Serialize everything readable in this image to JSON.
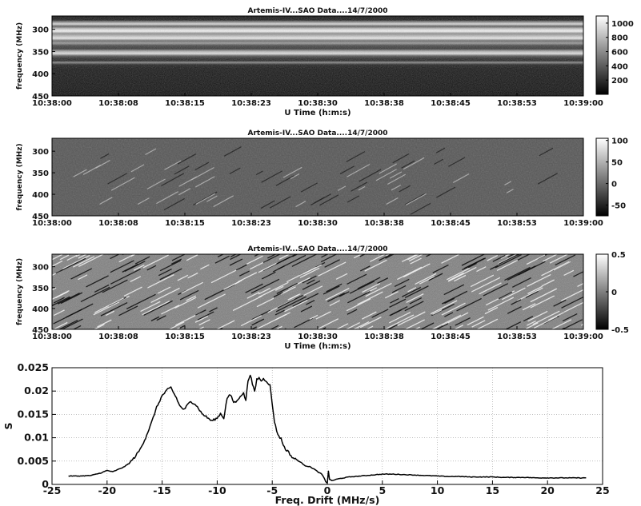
{
  "chart_data": [
    {
      "type": "heatmap",
      "title": "Artemis-IV...SAO   Data....14/7/2000",
      "xlabel": "U Time (h:m:s)",
      "ylabel": "frequency (MHz)",
      "x_ticks": [
        "10:38:00",
        "10:38:08",
        "10:38:15",
        "10:38:23",
        "10:38:30",
        "10:38:38",
        "10:38:45",
        "10:38:53",
        "10:39:00"
      ],
      "y_ticks": [
        300,
        350,
        400,
        450
      ],
      "ylim": [
        270,
        450
      ],
      "y_reversed": true,
      "colorbar_ticks": [
        1000,
        800,
        600,
        400,
        200
      ],
      "colorbar_range": [
        0,
        1100
      ],
      "colormap": "gray"
    },
    {
      "type": "heatmap",
      "title": "Artemis-IV...SAO   Data....14/7/2000",
      "xlabel": "",
      "ylabel": "frequency (MHz)",
      "x_ticks": [
        "10:38:00",
        "10:38:08",
        "10:38:15",
        "10:38:23",
        "10:38:30",
        "10:38:38",
        "10:38:45",
        "10:38:53",
        "10:39:00"
      ],
      "y_ticks": [
        300,
        350,
        400,
        450
      ],
      "ylim": [
        270,
        450
      ],
      "y_reversed": true,
      "colorbar_ticks": [
        100,
        50,
        0,
        -50
      ],
      "colorbar_range": [
        -75,
        105
      ],
      "colormap": "gray"
    },
    {
      "type": "heatmap",
      "title": "Artemis-IV...SAO   Data....14/7/2000",
      "xlabel": "U Time (h:m:s)",
      "ylabel": "frequency (MHz)",
      "x_ticks": [
        "10:38:00",
        "10:38:08",
        "10:38:15",
        "10:38:23",
        "10:38:30",
        "10:38:38",
        "10:38:45",
        "10:38:53",
        "10:39:00"
      ],
      "y_ticks": [
        300,
        350,
        400,
        450
      ],
      "ylim": [
        270,
        450
      ],
      "y_reversed": true,
      "colorbar_ticks": [
        0.5,
        0,
        -0.5
      ],
      "colorbar_range": [
        -0.5,
        0.5
      ],
      "colormap": "gray"
    },
    {
      "type": "line",
      "title": "",
      "xlabel": "Freq. Drift (MHz/s)",
      "ylabel": "S",
      "xlim": [
        -25,
        25
      ],
      "ylim": [
        0,
        0.025
      ],
      "x_ticks": [
        -25,
        -20,
        -15,
        -10,
        -5,
        0,
        5,
        10,
        15,
        20,
        25
      ],
      "y_ticks": [
        0,
        0.005,
        0.01,
        0.015,
        0.02,
        0.025
      ],
      "y_tick_labels": [
        "0",
        "0.005",
        "0.01",
        "0.015",
        "0.02",
        "0.025"
      ],
      "grid": true,
      "series": [
        {
          "x": [
            -23.5,
            -22.5,
            -21.5,
            -21,
            -20.5,
            -20,
            -19.5,
            -19,
            -18.5,
            -18,
            -17.5,
            -17,
            -16.5,
            -16,
            -15.5,
            -15,
            -14.5,
            -14.2,
            -14,
            -13.7,
            -13.4,
            -13,
            -12.7,
            -12.4,
            -12,
            -11.7,
            -11.4,
            -11,
            -10.5,
            -10,
            -9.7,
            -9.4,
            -9.1,
            -8.8,
            -8.5,
            -8.2,
            -7.9,
            -7.6,
            -7.4,
            -7.2,
            -7,
            -6.8,
            -6.6,
            -6.4,
            -6.2,
            -6,
            -5.8,
            -5.6,
            -5.4,
            -5.2,
            -5,
            -4.8,
            -4.6,
            -4.4,
            -4.2,
            -4,
            -3.8,
            -3.6,
            -3.2,
            -2.8,
            -2.4,
            -2,
            -1.6,
            -1.2,
            -0.8,
            -0.5,
            -0.3,
            -0.15,
            0,
            0.1,
            0.2,
            0.4,
            1,
            2,
            3,
            4,
            5,
            6,
            7,
            8,
            9,
            10,
            11,
            12,
            13,
            14,
            15,
            16,
            17,
            18,
            19,
            20,
            21,
            22,
            23.5
          ],
          "y": [
            0.0018,
            0.0018,
            0.0019,
            0.0022,
            0.0025,
            0.003,
            0.0027,
            0.0032,
            0.0037,
            0.0045,
            0.0058,
            0.0075,
            0.01,
            0.013,
            0.0165,
            0.019,
            0.0203,
            0.0208,
            0.0198,
            0.0185,
            0.0168,
            0.016,
            0.017,
            0.0178,
            0.0172,
            0.0163,
            0.0152,
            0.0145,
            0.0136,
            0.0142,
            0.0152,
            0.0142,
            0.0185,
            0.0192,
            0.0176,
            0.0178,
            0.019,
            0.0195,
            0.018,
            0.0222,
            0.0236,
            0.0215,
            0.0198,
            0.0225,
            0.0228,
            0.0222,
            0.0226,
            0.0223,
            0.0218,
            0.0212,
            0.0172,
            0.0135,
            0.0115,
            0.0103,
            0.0098,
            0.0085,
            0.0075,
            0.0072,
            0.0058,
            0.0053,
            0.0047,
            0.004,
            0.0038,
            0.0033,
            0.0026,
            0.0022,
            0.0014,
            0.0006,
            0.0003,
            0.0028,
            0.0011,
            0.0008,
            0.0012,
            0.0016,
            0.0018,
            0.002,
            0.0022,
            0.0022,
            0.0021,
            0.002,
            0.0019,
            0.0018,
            0.0017,
            0.0017,
            0.0016,
            0.0016,
            0.0016,
            0.0015,
            0.0015,
            0.0015,
            0.0014,
            0.0014,
            0.0014,
            0.0014,
            0.0014
          ]
        }
      ]
    }
  ]
}
